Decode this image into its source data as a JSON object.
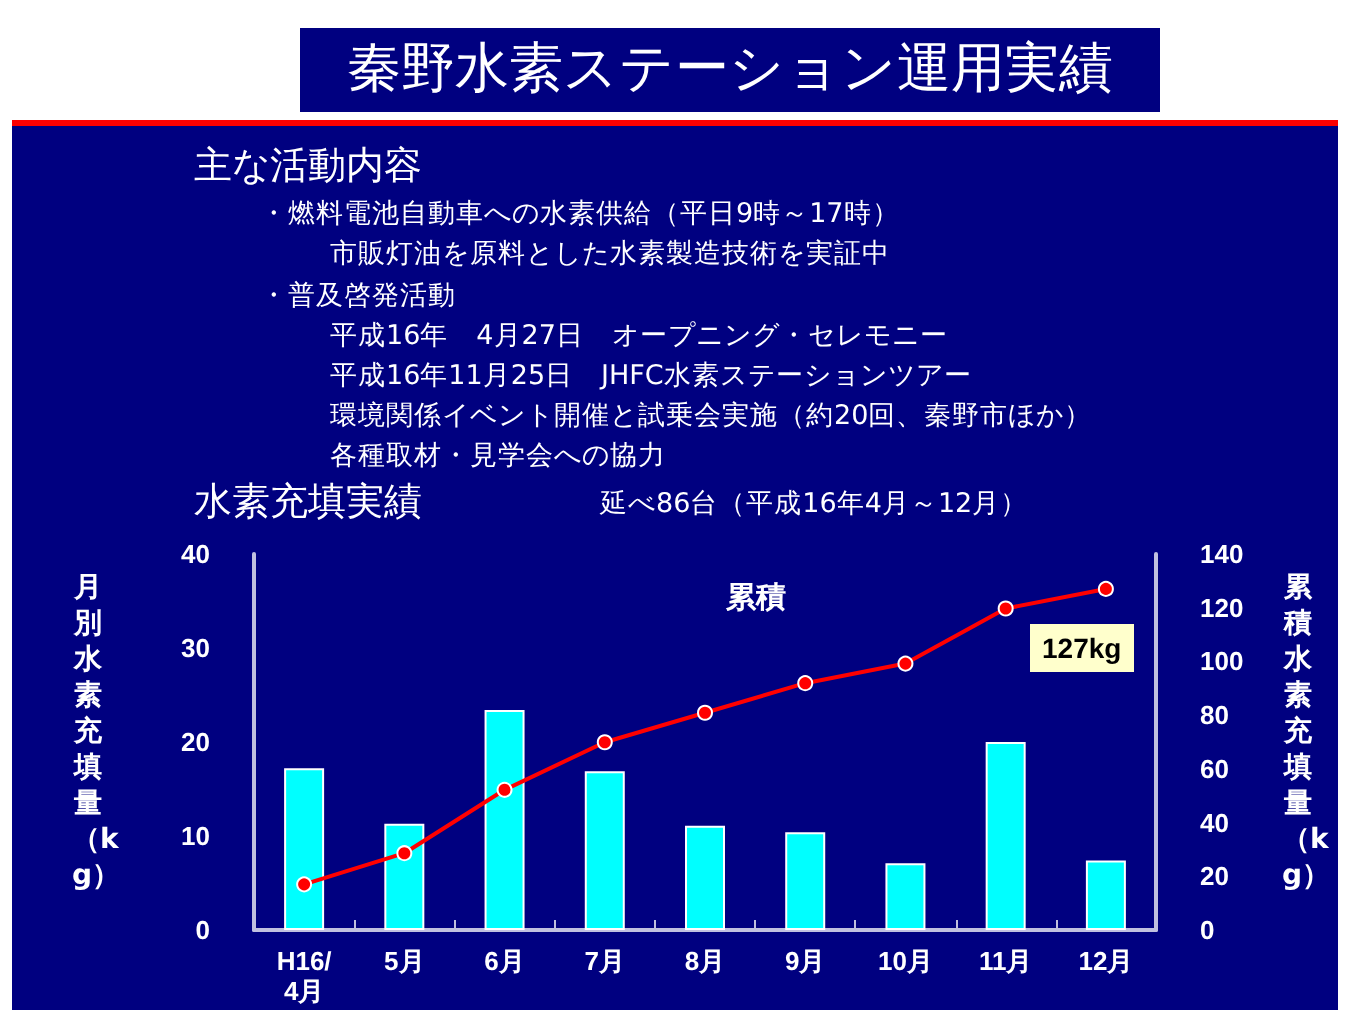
{
  "chart_data": {
    "type": "bar",
    "title": "秦野水素ステーション運用実績",
    "subtitle": "水素充填実績",
    "annotations": [
      "主な活動内容",
      "・燃料電池自動車への水素供給（平日9時～17時）",
      "市販灯油を原料とした水素製造技術を実証中",
      "・普及啓発活動",
      "平成16年　4月27日　オープニング・セレモニー",
      "平成16年11月25日　JHFC水素ステーションツアー",
      "環境関係イベント開催と試乗会実施（約20回、秦野市ほか）",
      "各種取材・見学会への協力",
      "延べ86台（平成16年4月～12月）",
      "127kg"
    ],
    "categories": [
      "H16/\n4月",
      "5月",
      "6月",
      "7月",
      "8月",
      "9月",
      "10月",
      "11月",
      "12月"
    ],
    "series": [
      {
        "color": "#00ffff",
        "values": [
          17.2,
          11.3,
          23.4,
          16.9,
          11.1,
          10.4,
          7.1,
          20.0,
          7.4
        ]
      },
      {
        "type": "line",
        "name": "累積",
        "color": "#ff0000",
        "axis": "y2",
        "marker": "circle",
        "values": [
          17,
          28.6,
          52.2,
          69.9,
          80.9,
          91.9,
          99.2,
          119.7,
          127
        ]
      }
    ],
    "ylabel": "月別水素充填量（kg）",
    "y2label": "累積水素充填量（kg）",
    "ylim": [
      0,
      40
    ],
    "yticks": [
      0,
      10,
      20,
      30,
      40
    ],
    "y2lim": [
      0,
      140
    ],
    "y2ticks": [
      0,
      20,
      40,
      60,
      80,
      100,
      120,
      140
    ],
    "grid": false,
    "legend": false
  }
}
